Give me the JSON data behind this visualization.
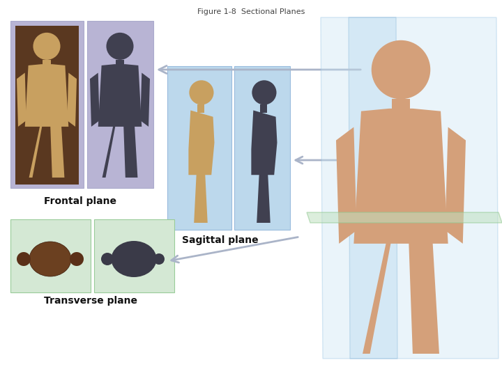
{
  "title": "Figure 1-8  Sectional Planes",
  "title_fontsize": 8,
  "title_color": "#444444",
  "background_color": "#ffffff",
  "frontal_label": "Frontal plane",
  "sagittal_label": "Sagittal plane",
  "transverse_label": "Transverse plane",
  "label_fontsize": 10,
  "label_fontweight": "bold",
  "frontal_bg": "#b8b4d4",
  "sagittal_bg": "#bcd8ec",
  "transverse_bg": "#d4e8d4",
  "arrow_color": "#aab4c8",
  "arrow_lw": 2.0
}
